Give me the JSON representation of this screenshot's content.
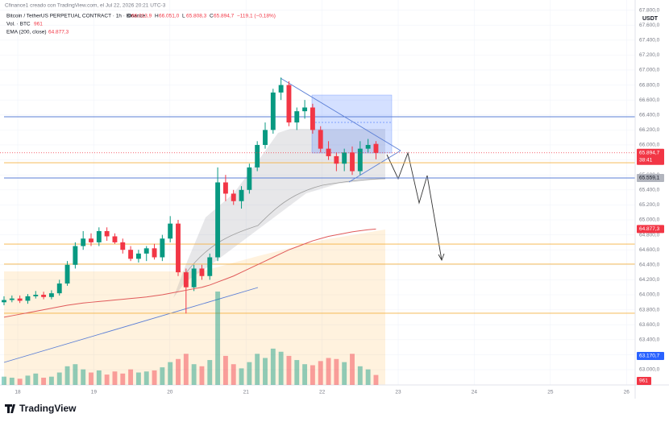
{
  "header": {
    "credit": "Cfinance1 creado con TradingView.com, el Jul 22, 2026 20:21 UTC-3",
    "symbol": "Bitcoin / TetherUS PERPETUAL CONTRACT · 1h · Binance",
    "ohlc": [
      {
        "label": "O",
        "value": "66.013,9"
      },
      {
        "label": "H",
        "value": "66.051,0"
      },
      {
        "label": "L",
        "value": "65.808,3"
      },
      {
        "label": "C",
        "value": "65.894,7"
      }
    ],
    "change": "−119,1 (−0,18%)",
    "volume_label": "Vol. · BTC",
    "ema_label": "EMA (200, close)",
    "ema_value": "64.877,3"
  },
  "currency": "USDT",
  "countdown": "38:41",
  "logo": "TradingView",
  "chart_data": {
    "type": "candlestick",
    "x": [
      17.82,
      17.924,
      18.028,
      18.132,
      18.236,
      18.34,
      18.444,
      18.548,
      18.652,
      18.756,
      18.86,
      18.964,
      19.068,
      19.172,
      19.276,
      19.38,
      19.484,
      19.588,
      19.692,
      19.796,
      19.9,
      20.004,
      20.108,
      20.212,
      20.316,
      20.42,
      20.524,
      20.628,
      20.732,
      20.836,
      20.94,
      21.044,
      21.148,
      21.252,
      21.356,
      21.46,
      21.564,
      21.668,
      21.772,
      21.876,
      21.98,
      22.084,
      22.188,
      22.292,
      22.396,
      22.5,
      22.604,
      22.708
    ],
    "open": [
      63900,
      63930,
      63950,
      63920,
      63980,
      64000,
      63970,
      64020,
      64150,
      64400,
      64650,
      64750,
      64700,
      64850,
      64780,
      64700,
      64600,
      64480,
      64550,
      64620,
      64500,
      64750,
      64950,
      64300,
      64100,
      64350,
      64250,
      64500,
      65500,
      65350,
      65250,
      65400,
      65700,
      66000,
      66200,
      66700,
      66800,
      66300,
      66450,
      66500,
      66200,
      65950,
      65850,
      65750,
      65900,
      65650,
      65950,
      66013.9
    ],
    "high": [
      63980,
      63990,
      63990,
      64010,
      64050,
      64040,
      64060,
      64200,
      64450,
      64700,
      64850,
      64820,
      64900,
      64900,
      64820,
      64750,
      64650,
      64600,
      64650,
      64680,
      64800,
      65050,
      65000,
      64350,
      64400,
      64400,
      64550,
      65700,
      65600,
      65400,
      65450,
      65750,
      66050,
      66300,
      66750,
      66900,
      66850,
      66500,
      66600,
      66550,
      66250,
      66050,
      65900,
      65950,
      65980,
      66050,
      66080,
      66051
    ],
    "low": [
      63860,
      63900,
      63890,
      63880,
      63950,
      63940,
      63940,
      63990,
      64120,
      64350,
      64600,
      64650,
      64650,
      64720,
      64680,
      64550,
      64450,
      64430,
      64450,
      64470,
      64450,
      64700,
      64250,
      63750,
      64050,
      64200,
      64200,
      64450,
      65250,
      65200,
      65150,
      65350,
      65650,
      65950,
      66150,
      66600,
      66250,
      66200,
      66350,
      66150,
      65900,
      65800,
      65650,
      65650,
      65600,
      65600,
      65900,
      65808.3
    ],
    "close": [
      63930,
      63950,
      63920,
      63980,
      64000,
      63970,
      64020,
      64150,
      64400,
      64650,
      64750,
      64700,
      64850,
      64780,
      64700,
      64600,
      64480,
      64550,
      64620,
      64500,
      64750,
      64950,
      64300,
      64100,
      64350,
      64250,
      64500,
      65500,
      65350,
      65250,
      65400,
      65700,
      66000,
      66200,
      66700,
      66800,
      66300,
      66450,
      66500,
      66200,
      65950,
      65850,
      65750,
      65900,
      65650,
      65950,
      66000,
      65894.7
    ],
    "up_color": "#089981",
    "down_color": "#f23645",
    "volume": {
      "values": [
        800,
        700,
        600,
        900,
        1100,
        700,
        800,
        1200,
        1800,
        2000,
        1500,
        1200,
        1400,
        1000,
        1300,
        1100,
        1500,
        1200,
        1300,
        1400,
        1700,
        2200,
        2500,
        3000,
        2000,
        1800,
        2400,
        9000,
        2800,
        2000,
        1600,
        2200,
        3000,
        2600,
        3500,
        3200,
        2800,
        2400,
        2000,
        1900,
        2300,
        2600,
        2500,
        2200,
        3000,
        1800,
        1500,
        961
      ],
      "ma_label": "63.170,7"
    },
    "ema": {
      "color": "#e05a5a",
      "values": [
        63700,
        63720,
        63740,
        63760,
        63780,
        63800,
        63820,
        63840,
        63860,
        63875,
        63890,
        63900,
        63910,
        63920,
        63930,
        63940,
        63950,
        63960,
        63970,
        63985,
        64000,
        64020,
        64040,
        64060,
        64080,
        64100,
        64130,
        64170,
        64210,
        64250,
        64300,
        64350,
        64400,
        64450,
        64500,
        64550,
        64600,
        64640,
        64680,
        64720,
        64750,
        64780,
        64800,
        64820,
        64840,
        64855,
        64868,
        64877.3
      ]
    },
    "xlim": [
      17.767,
      26.114
    ],
    "xticks": [
      18,
      19,
      20,
      21,
      22,
      23,
      24,
      25,
      26
    ],
    "ylim": [
      62796,
      67935
    ],
    "yticks": [
      {
        "value": 63000,
        "label": "63.000,0"
      },
      {
        "value": 63200,
        "label": "63.200,0"
      },
      {
        "value": 63400,
        "label": "63.400,0"
      },
      {
        "value": 63600,
        "label": "63.600,0"
      },
      {
        "value": 63800,
        "label": "63.800,0"
      },
      {
        "value": 64000,
        "label": "64.000,0"
      },
      {
        "value": 64200,
        "label": "64.200,0"
      },
      {
        "value": 64400,
        "label": "64.400,0"
      },
      {
        "value": 64600,
        "label": "64.600,0"
      },
      {
        "value": 64800,
        "label": "64.800,0"
      },
      {
        "value": 65000,
        "label": "65.000,0"
      },
      {
        "value": 65200,
        "label": "65.200,0"
      },
      {
        "value": 65400,
        "label": "65.400,0"
      },
      {
        "value": 65600,
        "label": "65.600,0"
      },
      {
        "value": 65800,
        "label": "65.800,0"
      },
      {
        "value": 66000,
        "label": "66.000,0"
      },
      {
        "value": 66200,
        "label": "66.200,0"
      },
      {
        "value": 66400,
        "label": "66.400,0"
      },
      {
        "value": 66600,
        "label": "66.600,0"
      },
      {
        "value": 66800,
        "label": "66.800,0"
      },
      {
        "value": 67000,
        "label": "67.000,0"
      },
      {
        "value": 67200,
        "label": "67.200,0"
      },
      {
        "value": 67400,
        "label": "67.400,0"
      },
      {
        "value": 67600,
        "label": "67.600,0"
      },
      {
        "value": 67800,
        "label": "67.800,0"
      }
    ],
    "price_labels": [
      {
        "value": 65894.7,
        "label": "65.894,7",
        "color": "#f23645"
      },
      {
        "value": 65559.1,
        "label": "65.559,1",
        "color": "#b2b5be"
      },
      {
        "value": 64877.3,
        "label": "64.877,3",
        "color": "#f23645"
      }
    ],
    "levels": [
      {
        "value": 66376,
        "color": "#5b7fd6"
      },
      {
        "value": 65559.1,
        "color": "#5b7fd6"
      },
      {
        "value": 65763,
        "color": "#f5b041"
      },
      {
        "value": 64677,
        "color": "#f5b041"
      },
      {
        "value": 64409,
        "color": "#f5b041"
      },
      {
        "value": 63753,
        "color": "#f5b041"
      }
    ]
  }
}
